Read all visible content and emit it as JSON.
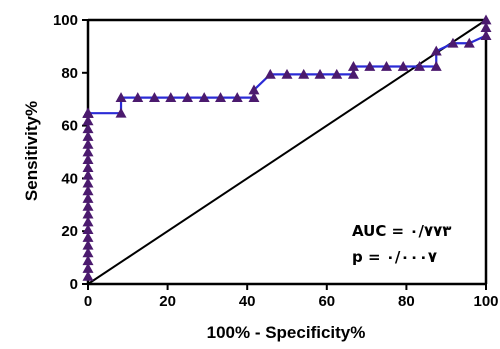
{
  "chart_data": {
    "type": "line",
    "xlabel": "100% - Specificity%",
    "ylabel": "Sensitivity%",
    "xlim": [
      0,
      100
    ],
    "ylim": [
      0,
      100
    ],
    "xticks": [
      0,
      20,
      40,
      60,
      80,
      100
    ],
    "yticks": [
      0,
      20,
      40,
      60,
      80,
      100
    ],
    "grid": false,
    "series": [
      {
        "color": "#2b2bd6",
        "marker_color": "#4b1a6e",
        "marker": "triangle",
        "x": [
          0,
          0,
          0,
          0,
          0,
          0,
          0,
          0,
          0,
          0,
          0,
          0,
          0,
          0,
          0,
          0,
          0,
          0,
          0,
          0,
          0,
          0,
          0,
          0,
          0,
          0,
          0,
          0,
          0,
          0,
          8.3,
          8.3,
          12.5,
          16.7,
          20.8,
          25,
          29.2,
          33.3,
          37.5,
          41.7,
          41.7,
          45.8,
          50,
          54.2,
          58.3,
          62.5,
          66.7,
          66.7,
          70.8,
          75,
          79.2,
          83.3,
          87.5,
          87.5,
          91.7,
          95.8,
          100,
          100,
          100
        ],
        "y": [
          2.9,
          5.9,
          8.8,
          11.8,
          14.7,
          17.6,
          20.6,
          23.5,
          26.5,
          29.4,
          32.4,
          35.3,
          38.2,
          41.2,
          44.1,
          47.1,
          50,
          52.9,
          55.9,
          58.8,
          61.8,
          64.7,
          64.7,
          64.7,
          64.7,
          64.7,
          64.7,
          64.7,
          64.7,
          64.7,
          64.7,
          70.6,
          70.6,
          70.6,
          70.6,
          70.6,
          70.6,
          70.6,
          70.6,
          70.6,
          73.5,
          79.4,
          79.4,
          79.4,
          79.4,
          79.4,
          79.4,
          82.4,
          82.4,
          82.4,
          82.4,
          82.4,
          82.4,
          88.2,
          91.2,
          91.2,
          94.1,
          97.1,
          100
        ]
      },
      {
        "color": "#000000",
        "x": [
          0,
          100
        ],
        "y": [
          0,
          100
        ]
      }
    ],
    "annotations": [
      {
        "text": "AUC = ۰/۷۷۳"
      },
      {
        "text": "p = ۰/۰۰۰۷"
      }
    ]
  }
}
